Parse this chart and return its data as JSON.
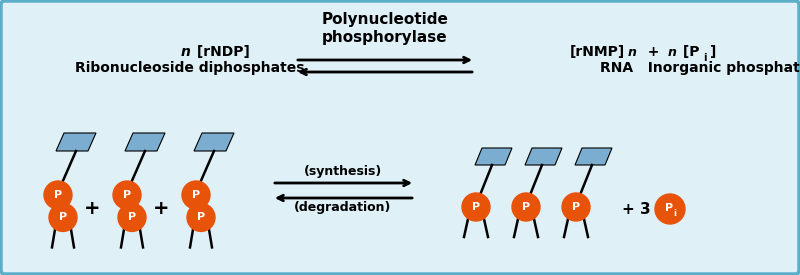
{
  "bg_color": "#dff0f7",
  "border_color": "#5aaec8",
  "title_text1": "Polynucleotide",
  "title_text2": "phosphorylase",
  "left_label1": "n [rNDP]",
  "left_label2": "Ribonucleoside diphosphates",
  "right_label1a": "[rNMP]",
  "right_label1b": "n",
  "right_label1c": "   +   ",
  "right_label1d": "n",
  "right_label1e": " [P",
  "right_label1f": "i",
  "right_label1g": "]",
  "right_label2": "RNA    Inorganic phosphates",
  "synthesis_label": "(synthesis)",
  "degradation_label": "(degradation)",
  "orange_color": "#e8530a",
  "base_color": "#7aadcf",
  "p_text_color": "#ffffff",
  "arrow_color": "#000000",
  "font_color": "#000000",
  "border_lw": 2.5
}
